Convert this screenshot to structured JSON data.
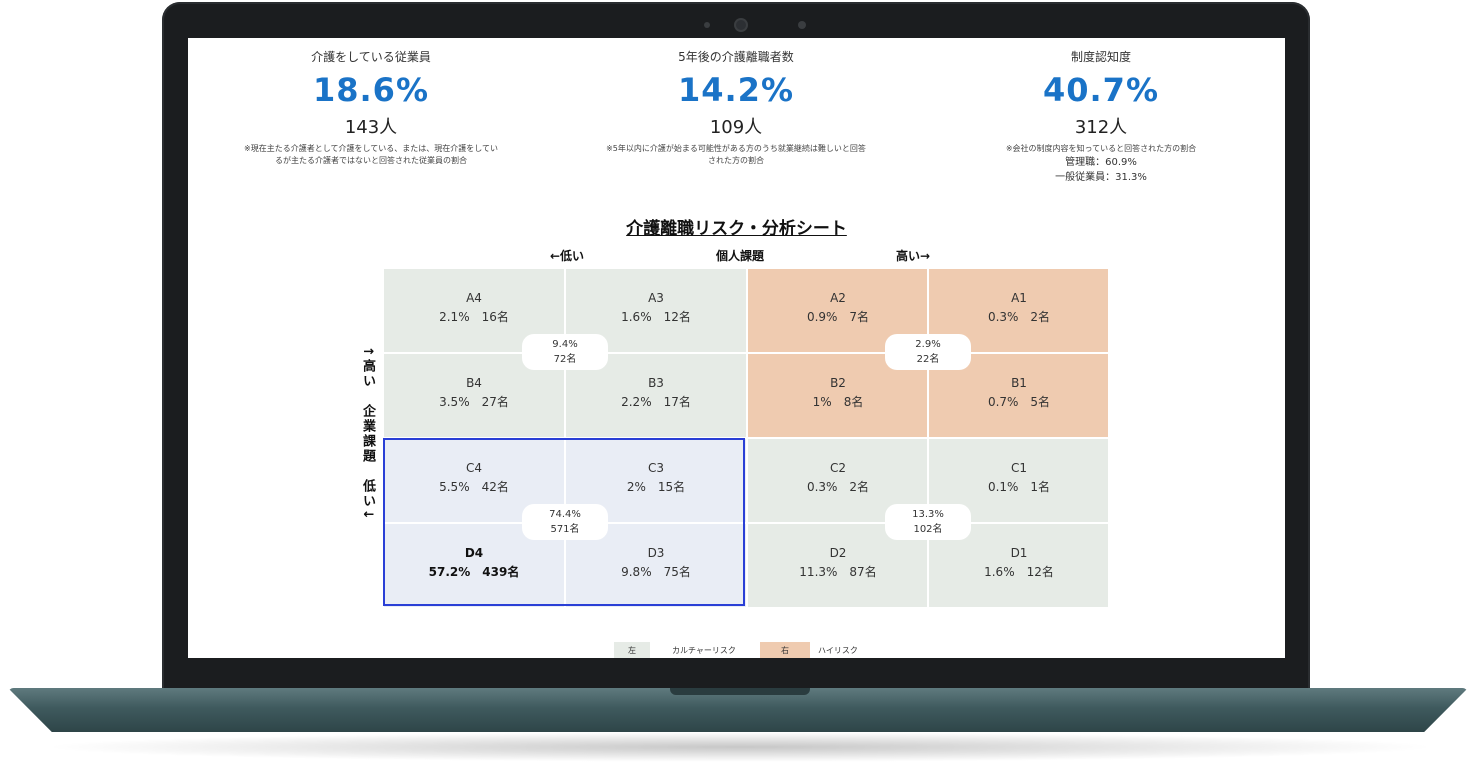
{
  "stats": [
    {
      "label": "介護をしている従業員",
      "percent": "18.6%",
      "count": "143人",
      "note": "※現在主たる介護者として介護をしている、または、現在介護をしているが主たる介護者ではないと回答された従業員の割合"
    },
    {
      "label": "5年後の介護離職者数",
      "percent": "14.2%",
      "count": "109人",
      "note": "※5年以内に介護が始まる可能性がある方のうち就業継続は難しいと回答された方の割合"
    },
    {
      "label": "制度認知度",
      "percent": "40.7%",
      "count": "312人",
      "note": "※会社の制度内容を知っていると回答された方の割合",
      "extra1": "管理職：60.9%",
      "extra2": "一般従業員：31.3%"
    }
  ],
  "matrix": {
    "title": "介護離職リスク・分析シート",
    "x_low": "←低い",
    "x_label": "個人課題",
    "x_high": "高い→",
    "y_label": "↑高い　企業課題　低い↓",
    "cells": {
      "A4": {
        "code": "A4",
        "value": "2.1%　16名"
      },
      "A3": {
        "code": "A3",
        "value": "1.6%　12名"
      },
      "A2": {
        "code": "A2",
        "value": "0.9%　7名"
      },
      "A1": {
        "code": "A1",
        "value": "0.3%　2名"
      },
      "B4": {
        "code": "B4",
        "value": "3.5%　27名"
      },
      "B3": {
        "code": "B3",
        "value": "2.2%　17名"
      },
      "B2": {
        "code": "B2",
        "value": "1%　8名"
      },
      "B1": {
        "code": "B1",
        "value": "0.7%　5名"
      },
      "C4": {
        "code": "C4",
        "value": "5.5%　42名"
      },
      "C3": {
        "code": "C3",
        "value": "2%　15名"
      },
      "C2": {
        "code": "C2",
        "value": "0.3%　2名"
      },
      "C1": {
        "code": "C1",
        "value": "0.1%　1名"
      },
      "D4": {
        "code": "D4",
        "value": "57.2%　439名"
      },
      "D3": {
        "code": "D3",
        "value": "9.8%　75名"
      },
      "D2": {
        "code": "D2",
        "value": "11.3%　87名"
      },
      "D1": {
        "code": "D1",
        "value": "1.6%　12名"
      }
    },
    "quadrants": {
      "top_left": {
        "pct": "9.4%",
        "count": "72名"
      },
      "top_right": {
        "pct": "2.9%",
        "count": "22名"
      },
      "bottom_left": {
        "pct": "74.4%",
        "count": "571名"
      },
      "bottom_right": {
        "pct": "13.3%",
        "count": "102名"
      }
    },
    "colors": {
      "culture": "#e6ebe6",
      "high": "#efcbb0",
      "highlight": "#e9edf5",
      "highlight_border": "#2a3fd6"
    }
  },
  "legend": [
    {
      "key": "左",
      "label": "カルチャーリスク",
      "color": "#e6ebe6"
    },
    {
      "key": "右",
      "label": "ハイリスク",
      "color": "#efcbb0"
    }
  ]
}
